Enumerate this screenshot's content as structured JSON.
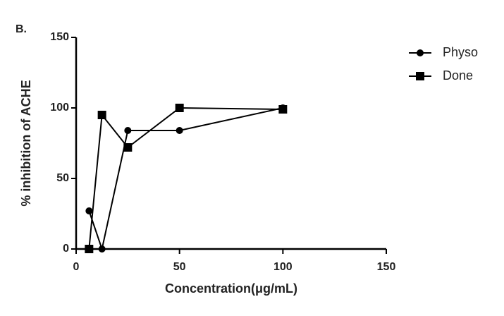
{
  "chart_data": {
    "type": "line",
    "title": "B.",
    "x_label": "Concentration(μg/mL)",
    "y_label": "% inhibition of ACHE",
    "x": [
      6.25,
      12.5,
      25,
      50,
      100
    ],
    "series": [
      {
        "name": "Physo",
        "color": "#000000",
        "marker": "circle",
        "values": [
          27,
          0,
          84,
          84,
          100
        ]
      },
      {
        "name": "Done",
        "color": "#000000",
        "marker": "square",
        "values": [
          0,
          95,
          72,
          100,
          99
        ]
      }
    ],
    "xlim": [
      0,
      150
    ],
    "xticks": [
      0,
      50,
      100,
      150
    ],
    "ylim": [
      0,
      150
    ],
    "yticks": [
      0,
      50,
      100,
      150
    ],
    "grid": false,
    "legend": "right"
  }
}
